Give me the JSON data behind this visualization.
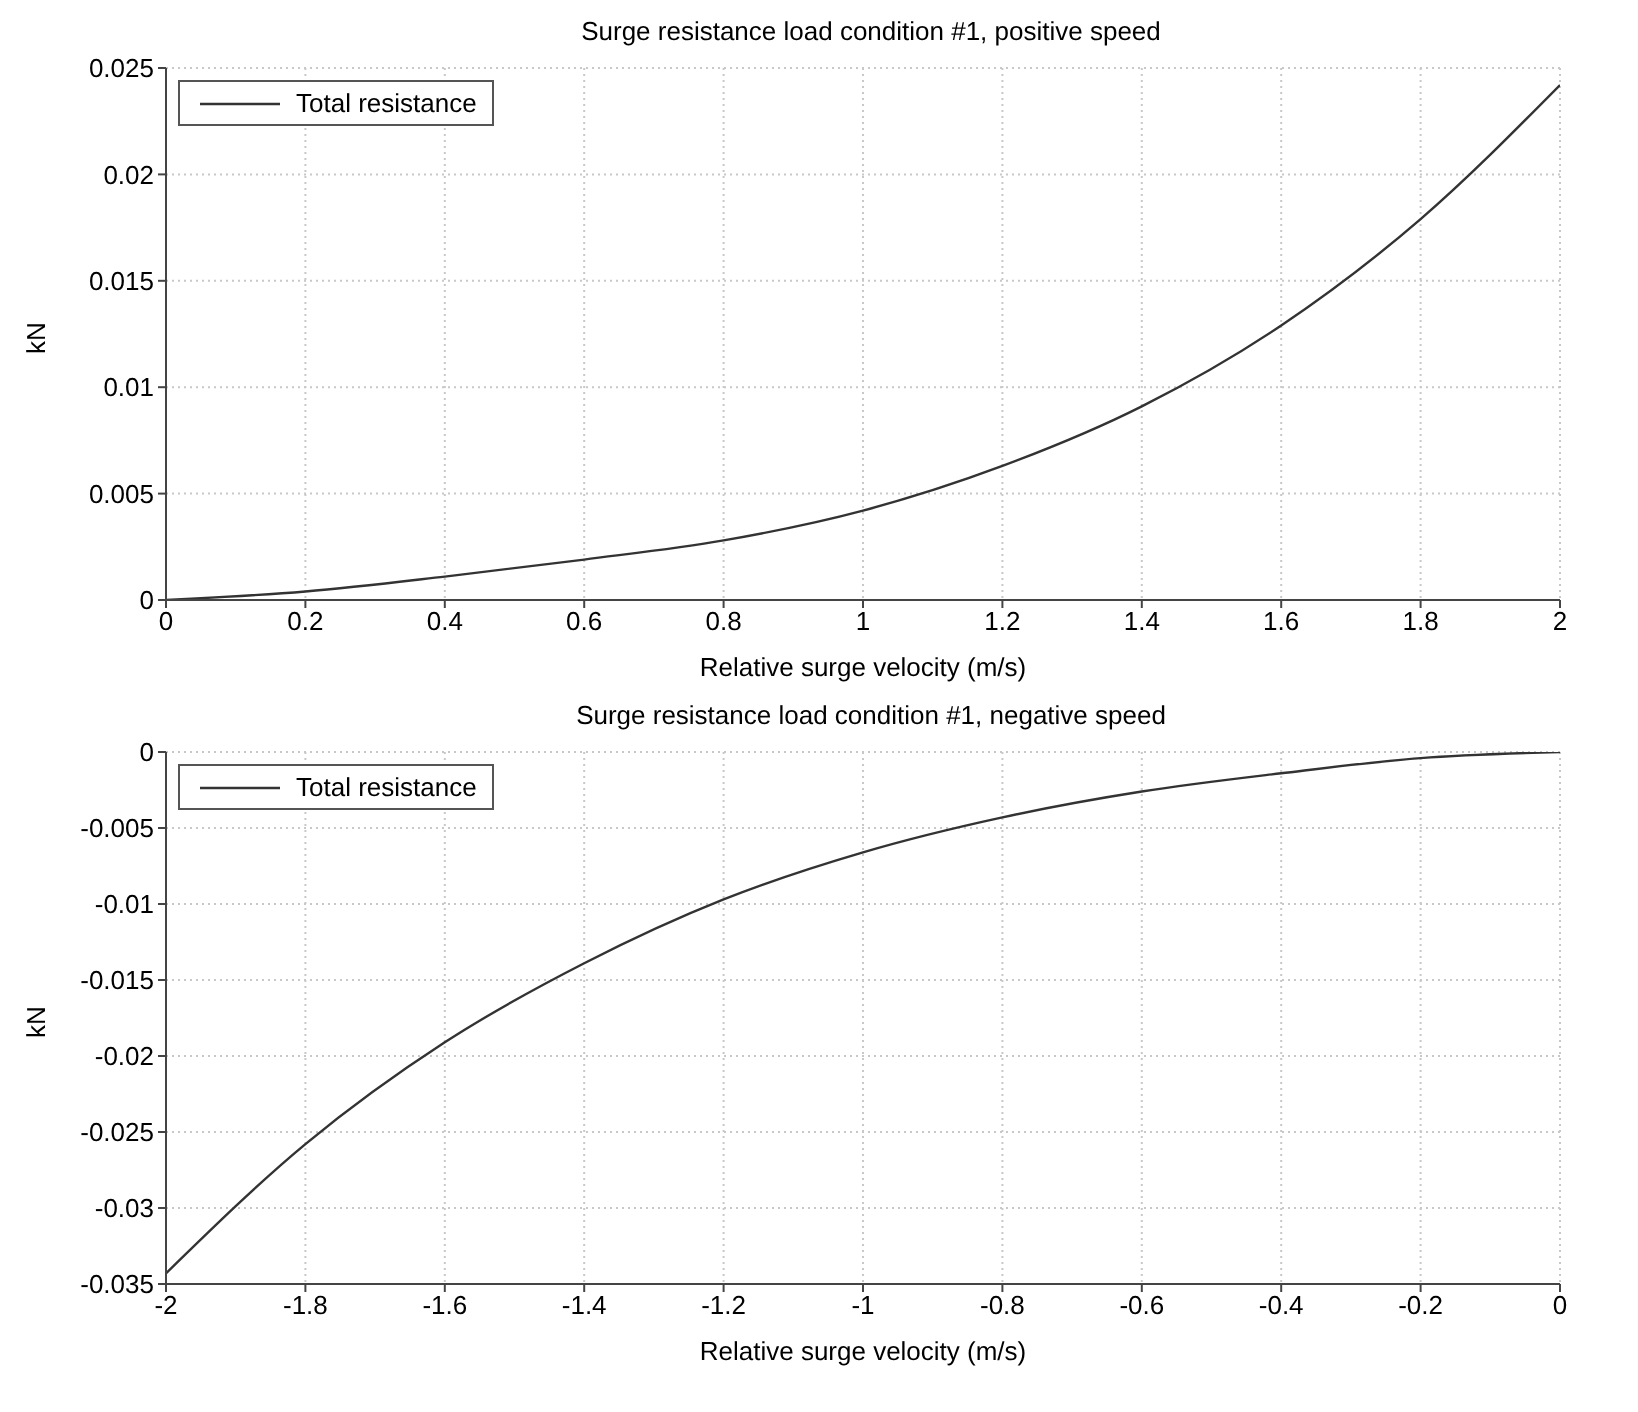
{
  "chart_data": [
    {
      "type": "line",
      "title": "Surge resistance load condition #1, positive speed",
      "xlabel": "Relative surge velocity (m/s)",
      "ylabel": "kN",
      "x": [
        0,
        0.2,
        0.4,
        0.6,
        0.8,
        1.0,
        1.2,
        1.4,
        1.6,
        1.8,
        2.0
      ],
      "series": [
        {
          "name": "Total resistance",
          "color": "#333333",
          "values": [
            0,
            0.0004,
            0.0011,
            0.0019,
            0.0028,
            0.0042,
            0.0063,
            0.0091,
            0.0129,
            0.0179,
            0.0242
          ]
        }
      ],
      "xlim": [
        0,
        2
      ],
      "xticks": [
        0,
        0.2,
        0.4,
        0.6,
        0.8,
        1,
        1.2,
        1.4,
        1.6,
        1.8,
        2
      ],
      "ylim": [
        0,
        0.025
      ],
      "yticks": [
        0,
        0.005,
        0.01,
        0.015,
        0.02,
        0.025
      ],
      "grid": true,
      "legend": "top left",
      "marker": "none",
      "line_style": "solid"
    },
    {
      "type": "line",
      "title": "Surge resistance load condition #1, negative speed",
      "xlabel": "Relative surge velocity (m/s)",
      "ylabel": "kN",
      "x": [
        -2,
        -1.8,
        -1.6,
        -1.4,
        -1.2,
        -1.0,
        -0.8,
        -0.6,
        -0.4,
        -0.2,
        0
      ],
      "series": [
        {
          "name": "Total resistance",
          "color": "#333333",
          "values": [
            -0.0343,
            -0.0258,
            -0.0191,
            -0.0139,
            -0.0097,
            -0.0066,
            -0.0043,
            -0.0026,
            -0.0014,
            -0.0004,
            0
          ]
        }
      ],
      "xlim": [
        -2,
        0
      ],
      "xticks": [
        -2,
        -1.8,
        -1.6,
        -1.4,
        -1.2,
        -1,
        -0.8,
        -0.6,
        -0.4,
        -0.2,
        0
      ],
      "ylim": [
        -0.035,
        0
      ],
      "yticks": [
        -0.035,
        -0.03,
        -0.025,
        -0.02,
        -0.015,
        -0.01,
        -0.005,
        0
      ],
      "grid": true,
      "legend": "top left",
      "marker": "none",
      "line_style": "solid"
    }
  ]
}
